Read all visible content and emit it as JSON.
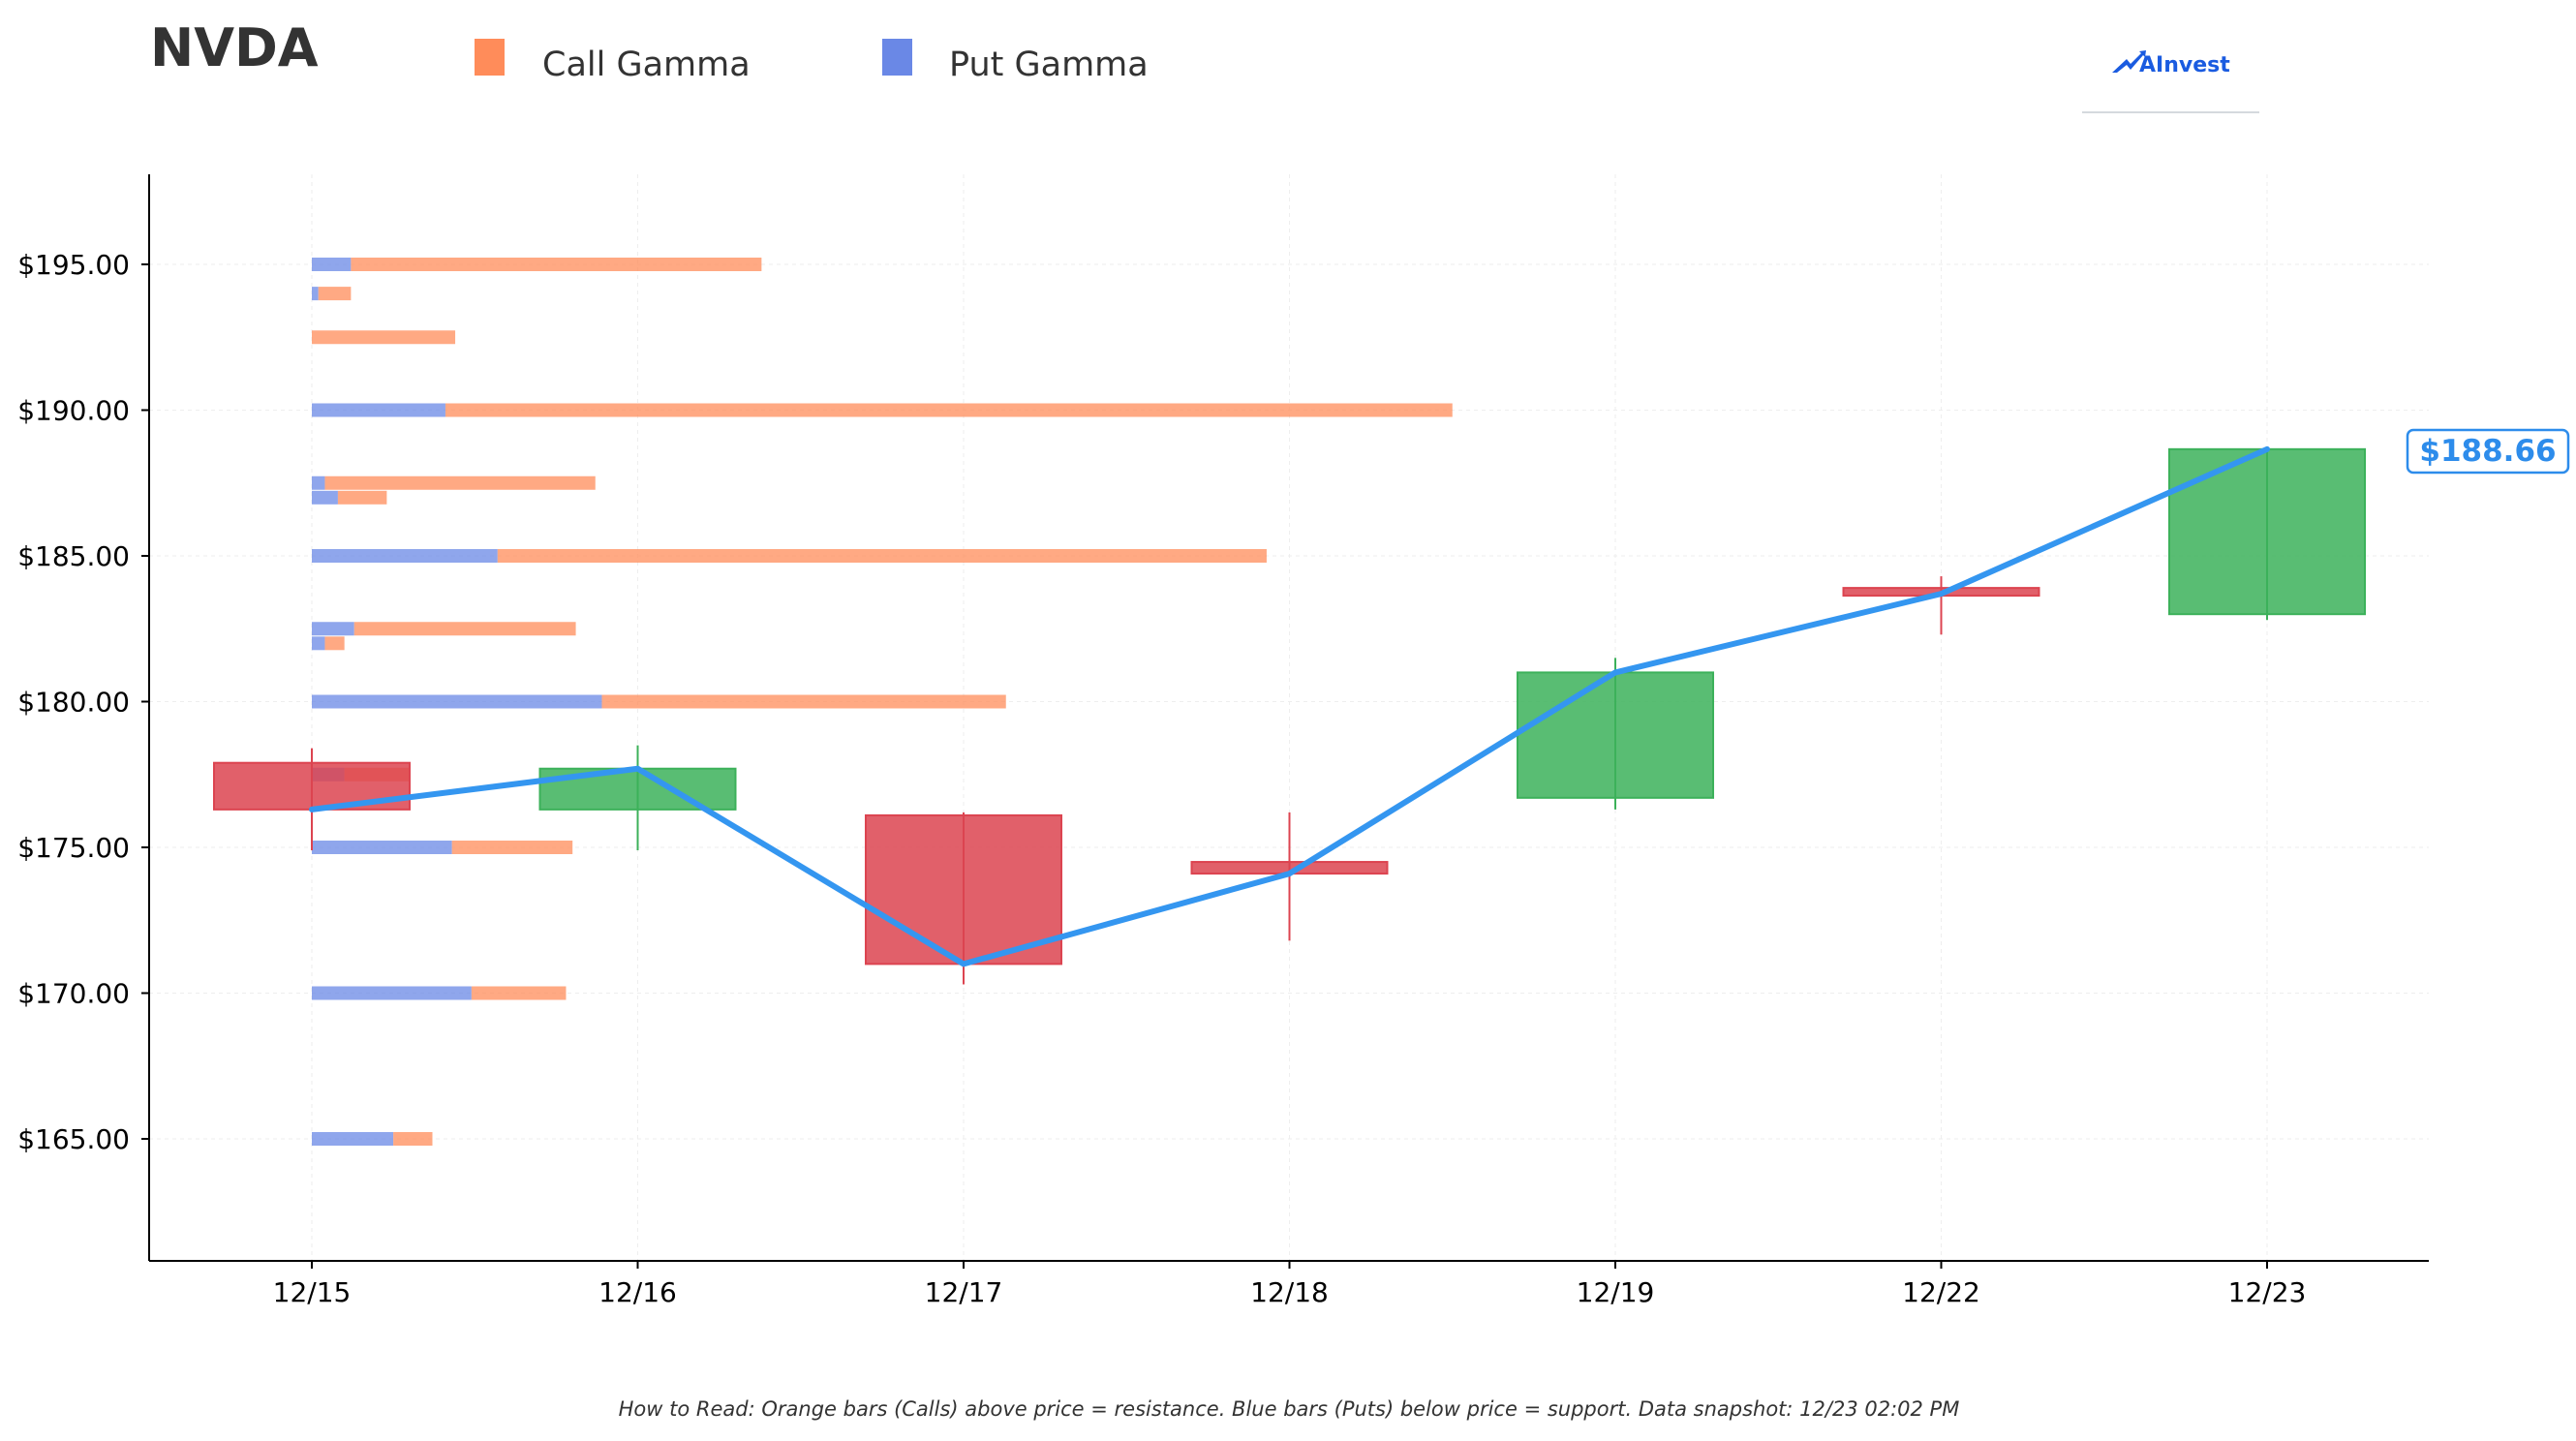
{
  "ticker": "NVDA",
  "brand": "AInvest",
  "footnote": "How to Read: Orange bars (Calls) above price = resistance. Blue bars (Puts) below price = support. Data snapshot: 12/23 02:02 PM",
  "colors": {
    "call_gamma": "#FF8C5A",
    "put_gamma": "#6A88E6",
    "up_candle": "#3CB15A",
    "down_candle": "#DC4450",
    "close_line": "#3496F0",
    "last_price": "#2D8CEB",
    "brand": "#1A5BE0",
    "title": "#333333"
  },
  "chart_data": {
    "type": "candlestick",
    "legend": [
      {
        "key": "call",
        "label": "Call Gamma"
      },
      {
        "key": "put",
        "label": "Put Gamma"
      }
    ],
    "legend_position": "top",
    "x_categories": [
      "12/15",
      "12/16",
      "12/17",
      "12/18",
      "12/19",
      "12/22",
      "12/23"
    ],
    "y_ticks": [
      165,
      170,
      175,
      180,
      185,
      190,
      195
    ],
    "y_tick_labels": [
      "$165.00",
      "$170.00",
      "$175.00",
      "$180.00",
      "$185.00",
      "$190.00",
      "$195.00"
    ],
    "ylim": [
      161,
      198
    ],
    "grid": true,
    "candles": [
      {
        "date": "12/15",
        "open": 177.9,
        "high": 178.4,
        "low": 174.9,
        "close": 176.3
      },
      {
        "date": "12/16",
        "open": 176.3,
        "high": 178.5,
        "low": 174.9,
        "close": 177.7
      },
      {
        "date": "12/17",
        "open": 176.1,
        "high": 176.2,
        "low": 170.3,
        "close": 171.0
      },
      {
        "date": "12/18",
        "open": 174.5,
        "high": 176.2,
        "low": 171.8,
        "close": 174.1
      },
      {
        "date": "12/19",
        "open": 176.7,
        "high": 181.5,
        "low": 176.3,
        "close": 181.0
      },
      {
        "date": "12/22",
        "open": 183.9,
        "high": 184.3,
        "low": 182.3,
        "close": 183.7
      },
      {
        "date": "12/23",
        "open": 183.0,
        "high": 188.7,
        "low": 182.8,
        "close": 188.66
      }
    ],
    "last_price_label": "$188.66",
    "gamma_note": "Horizontal gamma bars drawn from the 12/15 column; length in date-axis units (1.0 = one trading day).",
    "gamma_levels": [
      {
        "strike": 195.0,
        "put": 0.12,
        "call": 1.26
      },
      {
        "strike": 194.0,
        "put": 0.02,
        "call": 0.1
      },
      {
        "strike": 192.5,
        "put": 0.0,
        "call": 0.44
      },
      {
        "strike": 190.0,
        "put": 0.41,
        "call": 3.09
      },
      {
        "strike": 187.5,
        "put": 0.04,
        "call": 0.83
      },
      {
        "strike": 187.0,
        "put": 0.08,
        "call": 0.15
      },
      {
        "strike": 185.0,
        "put": 0.57,
        "call": 2.36
      },
      {
        "strike": 182.5,
        "put": 0.13,
        "call": 0.68
      },
      {
        "strike": 182.0,
        "put": 0.04,
        "call": 0.06
      },
      {
        "strike": 180.0,
        "put": 0.89,
        "call": 1.24
      },
      {
        "strike": 177.5,
        "put": 0.1,
        "call": 0.2
      },
      {
        "strike": 175.0,
        "put": 0.43,
        "call": 0.37
      },
      {
        "strike": 170.0,
        "put": 0.49,
        "call": 0.29
      },
      {
        "strike": 165.0,
        "put": 0.25,
        "call": 0.12
      }
    ]
  }
}
